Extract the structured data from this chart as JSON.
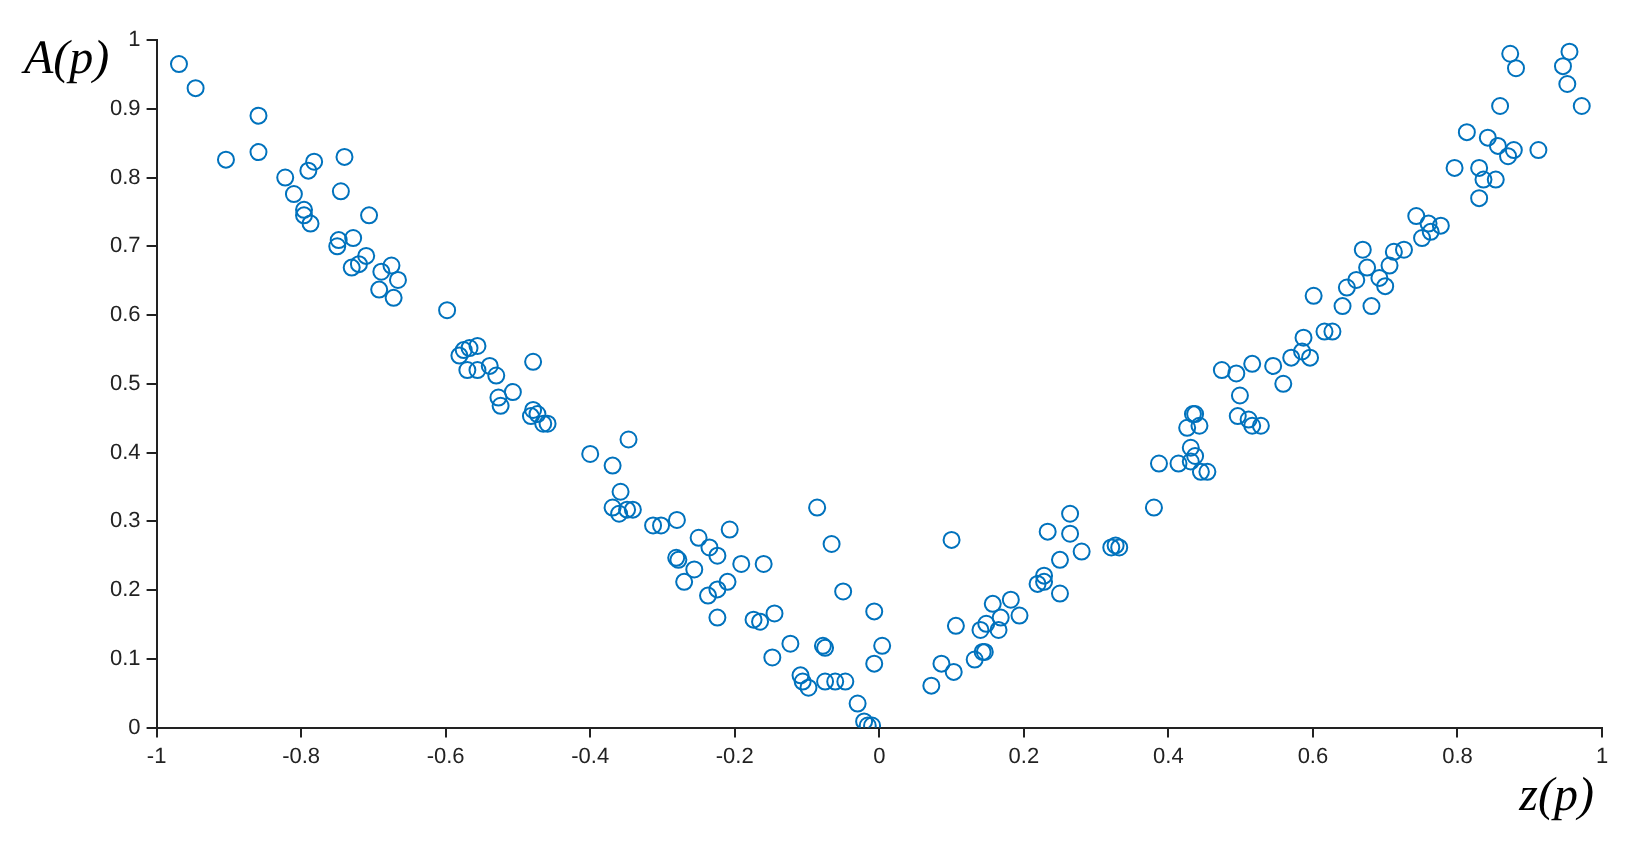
{
  "chart_data": {
    "type": "scatter",
    "xlabel": "z(p)",
    "ylabel": "A(p)",
    "xlim": [
      -1,
      1
    ],
    "xticks": [
      -1,
      -0.8,
      -0.6,
      -0.4,
      -0.2,
      0,
      0.2,
      0.4,
      0.6,
      0.8,
      1
    ],
    "ylim": [
      0,
      1
    ],
    "yticks": [
      0,
      0.1,
      0.2,
      0.3,
      0.4,
      0.5,
      0.6,
      0.7,
      0.8,
      0.9,
      1
    ],
    "grid": false,
    "legend": false,
    "marker": "circle",
    "series": [
      {
        "color": "#0072bd",
        "x": [
          -0.969,
          -0.946,
          -0.904,
          -0.859,
          -0.859,
          -0.822,
          -0.81,
          -0.782,
          -0.79,
          -0.74,
          -0.745,
          -0.706,
          -0.796,
          -0.796,
          -0.787,
          -0.748,
          -0.728,
          -0.75,
          -0.71,
          -0.73,
          -0.72,
          -0.689,
          -0.675,
          -0.692,
          -0.666,
          -0.672,
          -0.598,
          -0.581,
          -0.575,
          -0.567,
          -0.556,
          -0.57,
          -0.556,
          -0.539,
          -0.53,
          -0.479,
          -0.527,
          -0.524,
          -0.507,
          -0.479,
          -0.482,
          -0.473,
          -0.465,
          -0.459,
          -0.4,
          -0.369,
          -0.347,
          -0.358,
          -0.369,
          -0.36,
          -0.349,
          -0.341,
          -0.313,
          -0.302,
          -0.28,
          -0.25,
          -0.235,
          -0.224,
          -0.207,
          -0.281,
          -0.278,
          -0.27,
          -0.256,
          -0.237,
          -0.224,
          -0.21,
          -0.191,
          -0.16,
          -0.224,
          -0.174,
          -0.165,
          -0.145,
          -0.148,
          -0.123,
          -0.109,
          -0.106,
          -0.098,
          -0.086,
          -0.066,
          -0.05,
          -0.007,
          -0.075,
          -0.078,
          -0.075,
          -0.061,
          -0.047,
          -0.03,
          -0.021,
          -0.016,
          -0.01,
          0.004,
          -0.007,
          0.072,
          0.086,
          0.1,
          0.103,
          0.106,
          0.132,
          0.143,
          0.146,
          0.14,
          0.148,
          0.157,
          0.168,
          0.165,
          0.182,
          0.194,
          0.219,
          0.228,
          0.228,
          0.233,
          0.25,
          0.25,
          0.264,
          0.264,
          0.28,
          0.321,
          0.327,
          0.332,
          0.38,
          0.387,
          0.414,
          0.437,
          0.431,
          0.431,
          0.445,
          0.454,
          0.426,
          0.434,
          0.437,
          0.443,
          0.474,
          0.494,
          0.516,
          0.496,
          0.511,
          0.516,
          0.528,
          0.499,
          0.545,
          0.559,
          0.57,
          0.585,
          0.596,
          0.587,
          0.601,
          0.616,
          0.627,
          0.641,
          0.647,
          0.66,
          0.669,
          0.675,
          0.681,
          0.692,
          0.706,
          0.7,
          0.712,
          0.726,
          0.743,
          0.751,
          0.76,
          0.763,
          0.777,
          0.796,
          0.813,
          0.83,
          0.83,
          0.836,
          0.842,
          0.853,
          0.856,
          0.87,
          0.878,
          0.859,
          0.873,
          0.881,
          0.912,
          0.946,
          0.955,
          0.952,
          0.972
        ],
        "values": [
          0.965,
          0.93,
          0.826,
          0.89,
          0.837,
          0.8,
          0.776,
          0.823,
          0.81,
          0.83,
          0.78,
          0.745,
          0.753,
          0.745,
          0.733,
          0.709,
          0.712,
          0.7,
          0.686,
          0.669,
          0.674,
          0.663,
          0.672,
          0.637,
          0.651,
          0.625,
          0.607,
          0.541,
          0.549,
          0.552,
          0.555,
          0.52,
          0.52,
          0.526,
          0.512,
          0.532,
          0.48,
          0.468,
          0.488,
          0.462,
          0.453,
          0.456,
          0.442,
          0.442,
          0.398,
          0.381,
          0.419,
          0.343,
          0.32,
          0.311,
          0.317,
          0.317,
          0.294,
          0.294,
          0.302,
          0.276,
          0.262,
          0.25,
          0.288,
          0.247,
          0.244,
          0.212,
          0.23,
          0.192,
          0.201,
          0.212,
          0.238,
          0.238,
          0.16,
          0.157,
          0.154,
          0.166,
          0.102,
          0.122,
          0.076,
          0.067,
          0.058,
          0.32,
          0.267,
          0.198,
          0.169,
          0.116,
          0.119,
          0.067,
          0.067,
          0.067,
          0.035,
          0.009,
          0.003,
          0.003,
          0.119,
          0.093,
          0.061,
          0.093,
          0.273,
          0.081,
          0.148,
          0.099,
          0.11,
          0.11,
          0.142,
          0.151,
          0.18,
          0.16,
          0.142,
          0.186,
          0.163,
          0.209,
          0.221,
          0.212,
          0.285,
          0.195,
          0.244,
          0.282,
          0.311,
          0.256,
          0.262,
          0.265,
          0.262,
          0.32,
          0.384,
          0.384,
          0.395,
          0.407,
          0.387,
          0.372,
          0.372,
          0.436,
          0.456,
          0.456,
          0.439,
          0.52,
          0.515,
          0.529,
          0.453,
          0.448,
          0.439,
          0.439,
          0.483,
          0.526,
          0.5,
          0.538,
          0.547,
          0.538,
          0.567,
          0.628,
          0.576,
          0.576,
          0.613,
          0.64,
          0.651,
          0.695,
          0.669,
          0.613,
          0.654,
          0.672,
          0.642,
          0.692,
          0.695,
          0.744,
          0.712,
          0.733,
          0.721,
          0.73,
          0.814,
          0.866,
          0.814,
          0.77,
          0.797,
          0.858,
          0.797,
          0.846,
          0.831,
          0.84,
          0.904,
          0.98,
          0.959,
          0.84,
          0.962,
          0.983,
          0.936,
          0.904
        ]
      }
    ]
  }
}
